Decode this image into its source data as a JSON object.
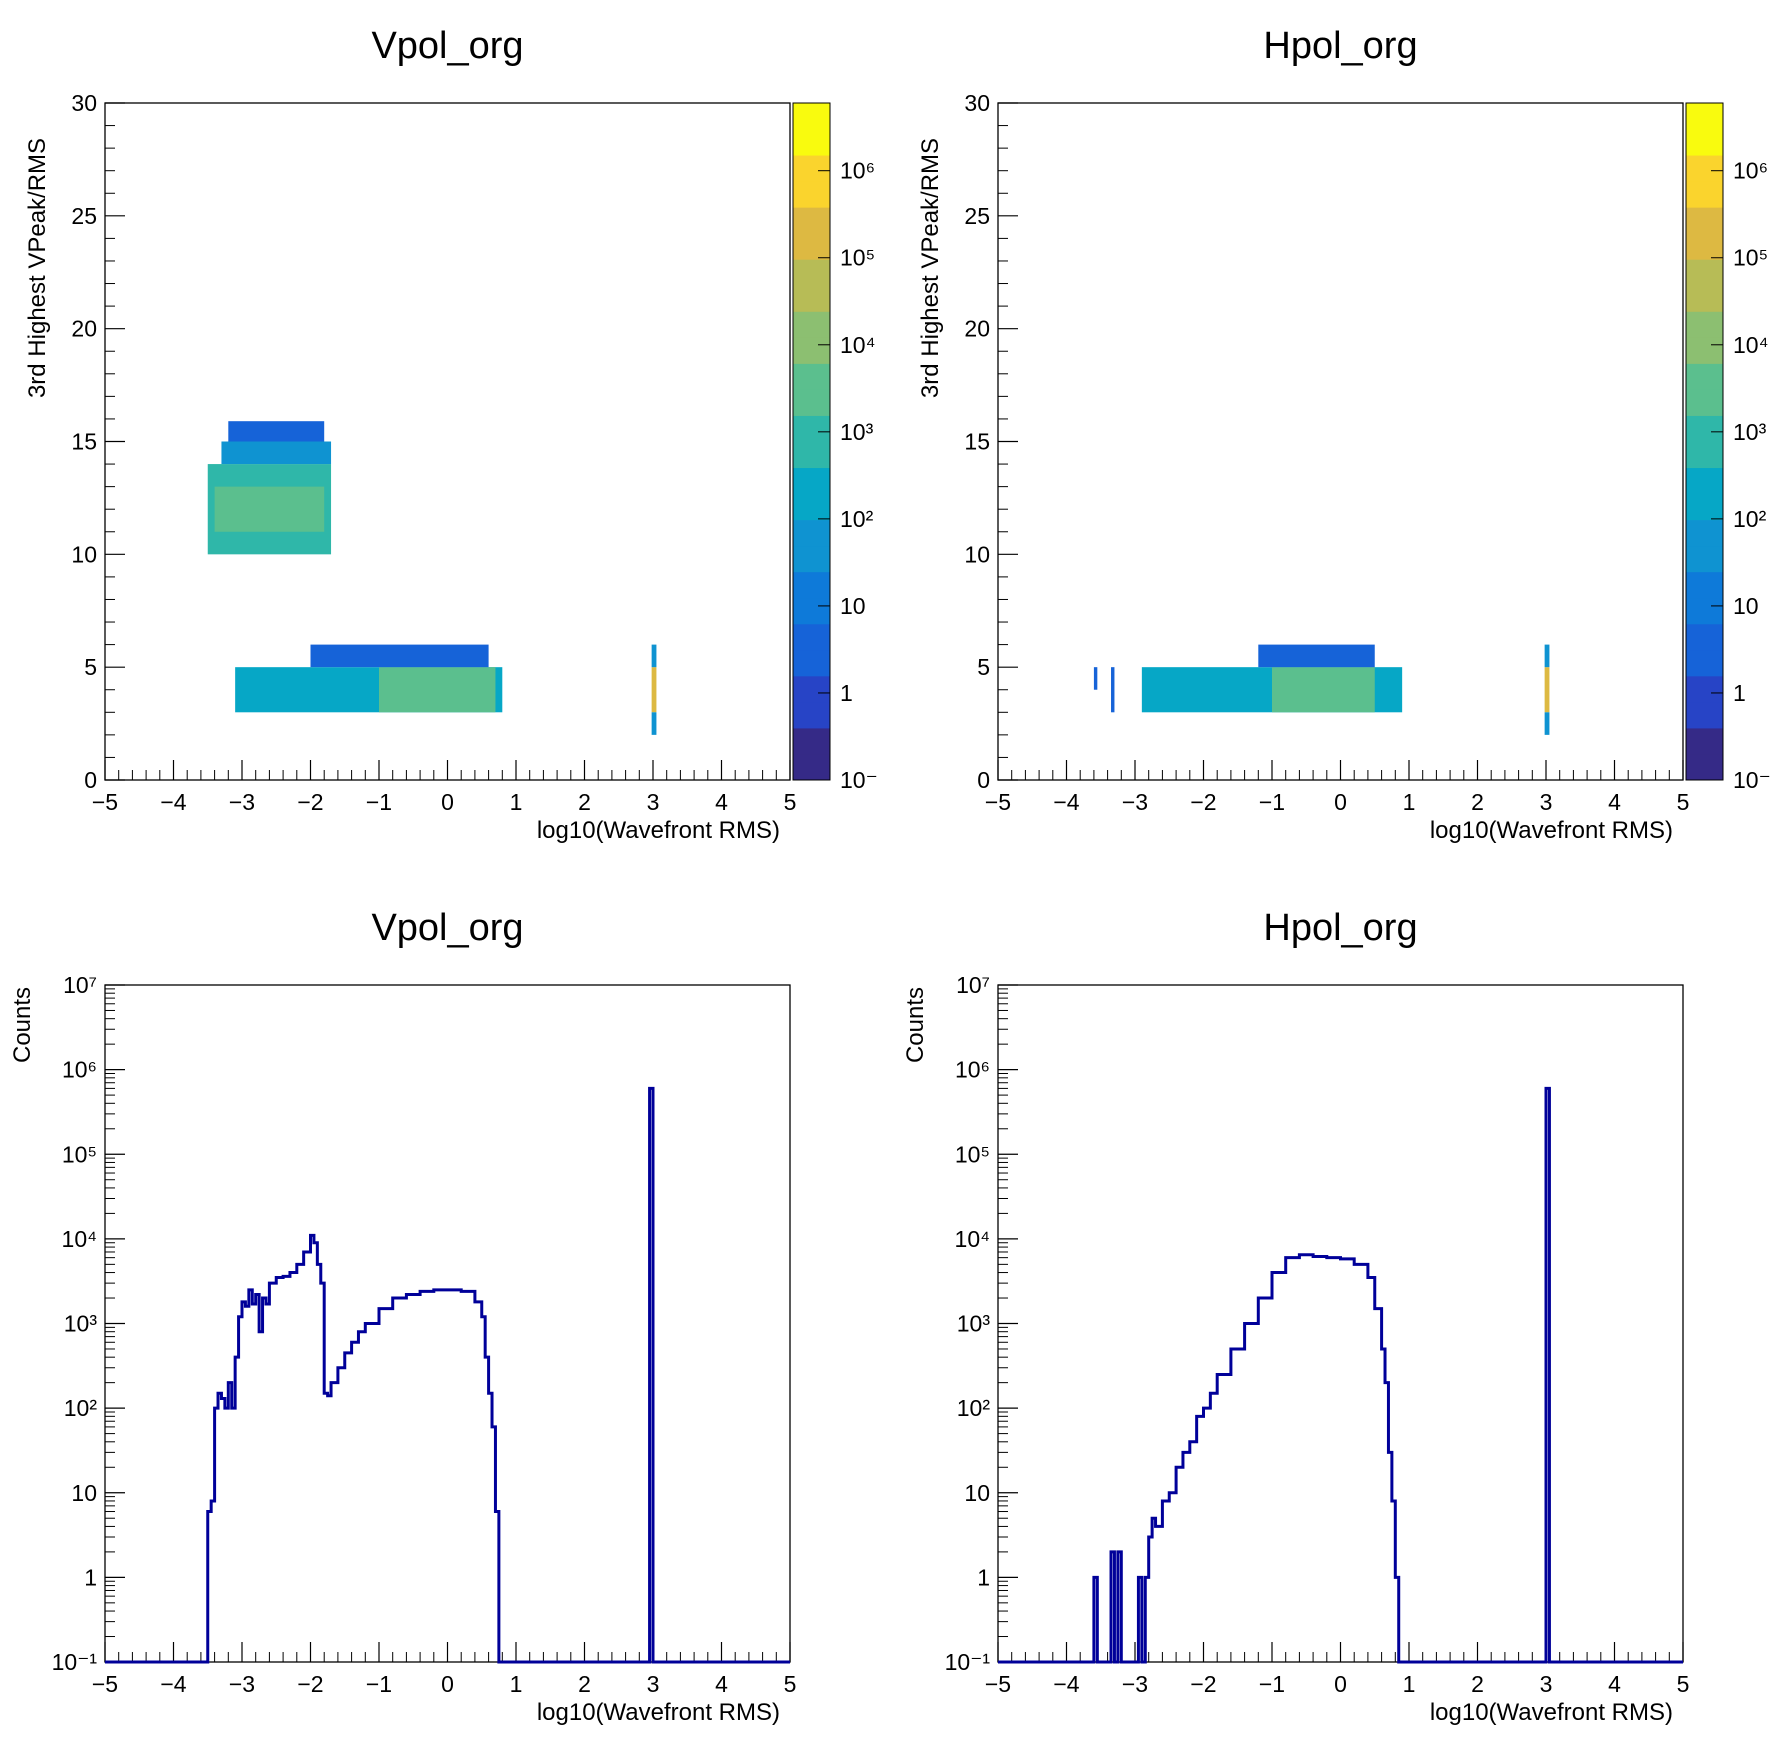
{
  "chart_data": [
    {
      "type": "heatmap",
      "title": "Vpol_org",
      "xlabel": "log10(Wavefront RMS)",
      "ylabel": "3rd Highest VPeak/RMS",
      "xlim": [
        -5,
        5
      ],
      "ylim": [
        0,
        30
      ],
      "x_ticks": [
        "−5",
        "−4",
        "−3",
        "−2",
        "−1",
        "0",
        "1",
        "2",
        "3",
        "4",
        "5"
      ],
      "y_ticks": [
        "0",
        "5",
        "10",
        "15",
        "20",
        "25",
        "30"
      ],
      "z_scale": "log",
      "colorbar_labels": [
        "10⁻",
        "1",
        "10",
        "10²",
        "10³",
        "10⁴",
        "10⁵",
        "10⁶"
      ],
      "cells": [
        {
          "x0": -3.5,
          "x1": -1.7,
          "y0": 10,
          "y1": 14,
          "value": 1000
        },
        {
          "x0": -3.4,
          "x1": -1.8,
          "y0": 11,
          "y1": 13,
          "value": 3000
        },
        {
          "x0": -3.3,
          "x1": -1.7,
          "y0": 14,
          "y1": 15,
          "value": 30
        },
        {
          "x0": -3.2,
          "x1": -1.8,
          "y0": 15,
          "y1": 15.9,
          "value": 3
        },
        {
          "x0": -3.1,
          "x1": 0.8,
          "y0": 3,
          "y1": 5,
          "value": 300
        },
        {
          "x0": -1.0,
          "x1": 0.7,
          "y0": 3,
          "y1": 5,
          "value": 3000
        },
        {
          "x0": -2.0,
          "x1": 0.6,
          "y0": 5,
          "y1": 6,
          "value": 3
        },
        {
          "x0": 2.98,
          "x1": 3.05,
          "y0": 3,
          "y1": 5,
          "value": 500000
        },
        {
          "x0": 2.98,
          "x1": 3.05,
          "y0": 2,
          "y1": 3,
          "value": 100
        },
        {
          "x0": 2.98,
          "x1": 3.05,
          "y0": 5,
          "y1": 6,
          "value": 100
        }
      ]
    },
    {
      "type": "heatmap",
      "title": "Hpol_org",
      "xlabel": "log10(Wavefront RMS)",
      "ylabel": "3rd Highest VPeak/RMS",
      "xlim": [
        -5,
        5
      ],
      "ylim": [
        0,
        30
      ],
      "x_ticks": [
        "−5",
        "−4",
        "−3",
        "−2",
        "−1",
        "0",
        "1",
        "2",
        "3",
        "4",
        "5"
      ],
      "y_ticks": [
        "0",
        "5",
        "10",
        "15",
        "20",
        "25",
        "30"
      ],
      "z_scale": "log",
      "colorbar_labels": [
        "10⁻",
        "1",
        "10",
        "10²",
        "10³",
        "10⁴",
        "10⁵",
        "10⁶"
      ],
      "cells": [
        {
          "x0": -2.9,
          "x1": 0.9,
          "y0": 3,
          "y1": 5,
          "value": 300
        },
        {
          "x0": -1.0,
          "x1": 0.5,
          "y0": 3,
          "y1": 5,
          "value": 5000
        },
        {
          "x0": -1.2,
          "x1": 0.5,
          "y0": 5,
          "y1": 6,
          "value": 3
        },
        {
          "x0": -3.6,
          "x1": -3.55,
          "y0": 4,
          "y1": 5,
          "value": 2
        },
        {
          "x0": -3.35,
          "x1": -3.3,
          "y0": 3,
          "y1": 5,
          "value": 2
        },
        {
          "x0": 2.98,
          "x1": 3.05,
          "y0": 3,
          "y1": 5,
          "value": 500000
        },
        {
          "x0": 2.98,
          "x1": 3.05,
          "y0": 2,
          "y1": 3,
          "value": 100
        },
        {
          "x0": 2.98,
          "x1": 3.05,
          "y0": 5,
          "y1": 6,
          "value": 100
        }
      ]
    },
    {
      "type": "line",
      "style": "histogram-step",
      "title": "Vpol_org",
      "xlabel": "log10(Wavefront RMS)",
      "ylabel": "Counts",
      "xlim": [
        -5,
        5
      ],
      "yscale": "log",
      "ylim": [
        0.1,
        10000000
      ],
      "x_ticks": [
        "−5",
        "−4",
        "−3",
        "−2",
        "−1",
        "0",
        "1",
        "2",
        "3",
        "4",
        "5"
      ],
      "y_ticks": [
        "10⁻¹",
        "1",
        "10",
        "10²",
        "10³",
        "10⁴",
        "10⁵",
        "10⁶",
        "10⁷"
      ],
      "color": "#000099",
      "series": [
        {
          "x": [
            -5,
            -3.5,
            -3.45,
            -3.4,
            -3.35,
            -3.3,
            -3.25,
            -3.2,
            -3.15,
            -3.1,
            -3.05,
            -3.0,
            -2.95,
            -2.9,
            -2.85,
            -2.8,
            -2.75,
            -2.7,
            -2.65,
            -2.6,
            -2.5,
            -2.4,
            -2.3,
            -2.2,
            -2.1,
            -2.0,
            -1.95,
            -1.9,
            -1.85,
            -1.8,
            -1.75,
            -1.7,
            -1.6,
            -1.5,
            -1.4,
            -1.3,
            -1.2,
            -1.0,
            -0.8,
            -0.6,
            -0.4,
            -0.2,
            0.0,
            0.2,
            0.4,
            0.5,
            0.55,
            0.6,
            0.65,
            0.7,
            0.75,
            0.8,
            2.95,
            3.0,
            3.05,
            5
          ],
          "y": [
            0.1,
            6,
            8,
            100,
            150,
            130,
            100,
            200,
            100,
            400,
            1200,
            1800,
            1600,
            2500,
            1700,
            2200,
            800,
            2000,
            1700,
            3000,
            3500,
            3600,
            4000,
            5000,
            7000,
            11000,
            9000,
            5000,
            3000,
            150,
            140,
            200,
            300,
            450,
            600,
            800,
            1000,
            1500,
            2000,
            2200,
            2400,
            2500,
            2500,
            2400,
            1800,
            1200,
            400,
            150,
            60,
            6,
            0.1,
            0.1,
            600000,
            0.1,
            0.1,
            0.1
          ]
        }
      ]
    },
    {
      "type": "line",
      "style": "histogram-step",
      "title": "Hpol_org",
      "xlabel": "log10(Wavefront RMS)",
      "ylabel": "Counts",
      "xlim": [
        -5,
        5
      ],
      "yscale": "log",
      "ylim": [
        0.1,
        10000000
      ],
      "x_ticks": [
        "−5",
        "−4",
        "−3",
        "−2",
        "−1",
        "0",
        "1",
        "2",
        "3",
        "4",
        "5"
      ],
      "y_ticks": [
        "10⁻¹",
        "1",
        "10",
        "10²",
        "10³",
        "10⁴",
        "10⁵",
        "10⁶",
        "10⁷"
      ],
      "color": "#000099",
      "series": [
        {
          "x": [
            -5,
            -3.6,
            -3.55,
            -3.35,
            -3.3,
            -3.25,
            -3.2,
            -3.15,
            -2.95,
            -2.9,
            -2.85,
            -2.8,
            -2.75,
            -2.7,
            -2.6,
            -2.5,
            -2.4,
            -2.3,
            -2.2,
            -2.1,
            -2.0,
            -1.9,
            -1.8,
            -1.6,
            -1.4,
            -1.2,
            -1.0,
            -0.8,
            -0.6,
            -0.4,
            -0.2,
            0.0,
            0.2,
            0.4,
            0.5,
            0.6,
            0.65,
            0.7,
            0.75,
            0.8,
            0.85,
            0.9,
            2.95,
            3.0,
            3.05,
            5
          ],
          "y": [
            0.1,
            1,
            0.1,
            2,
            0.1,
            2,
            0.1,
            0.1,
            1,
            0.1,
            1,
            3,
            5,
            4,
            8,
            10,
            20,
            30,
            40,
            80,
            100,
            150,
            250,
            500,
            1000,
            2000,
            4000,
            6000,
            6500,
            6200,
            6000,
            5800,
            5000,
            3500,
            1500,
            500,
            200,
            30,
            8,
            1,
            0.1,
            0.1,
            0.1,
            600000,
            0.1,
            0.1
          ]
        }
      ]
    }
  ]
}
